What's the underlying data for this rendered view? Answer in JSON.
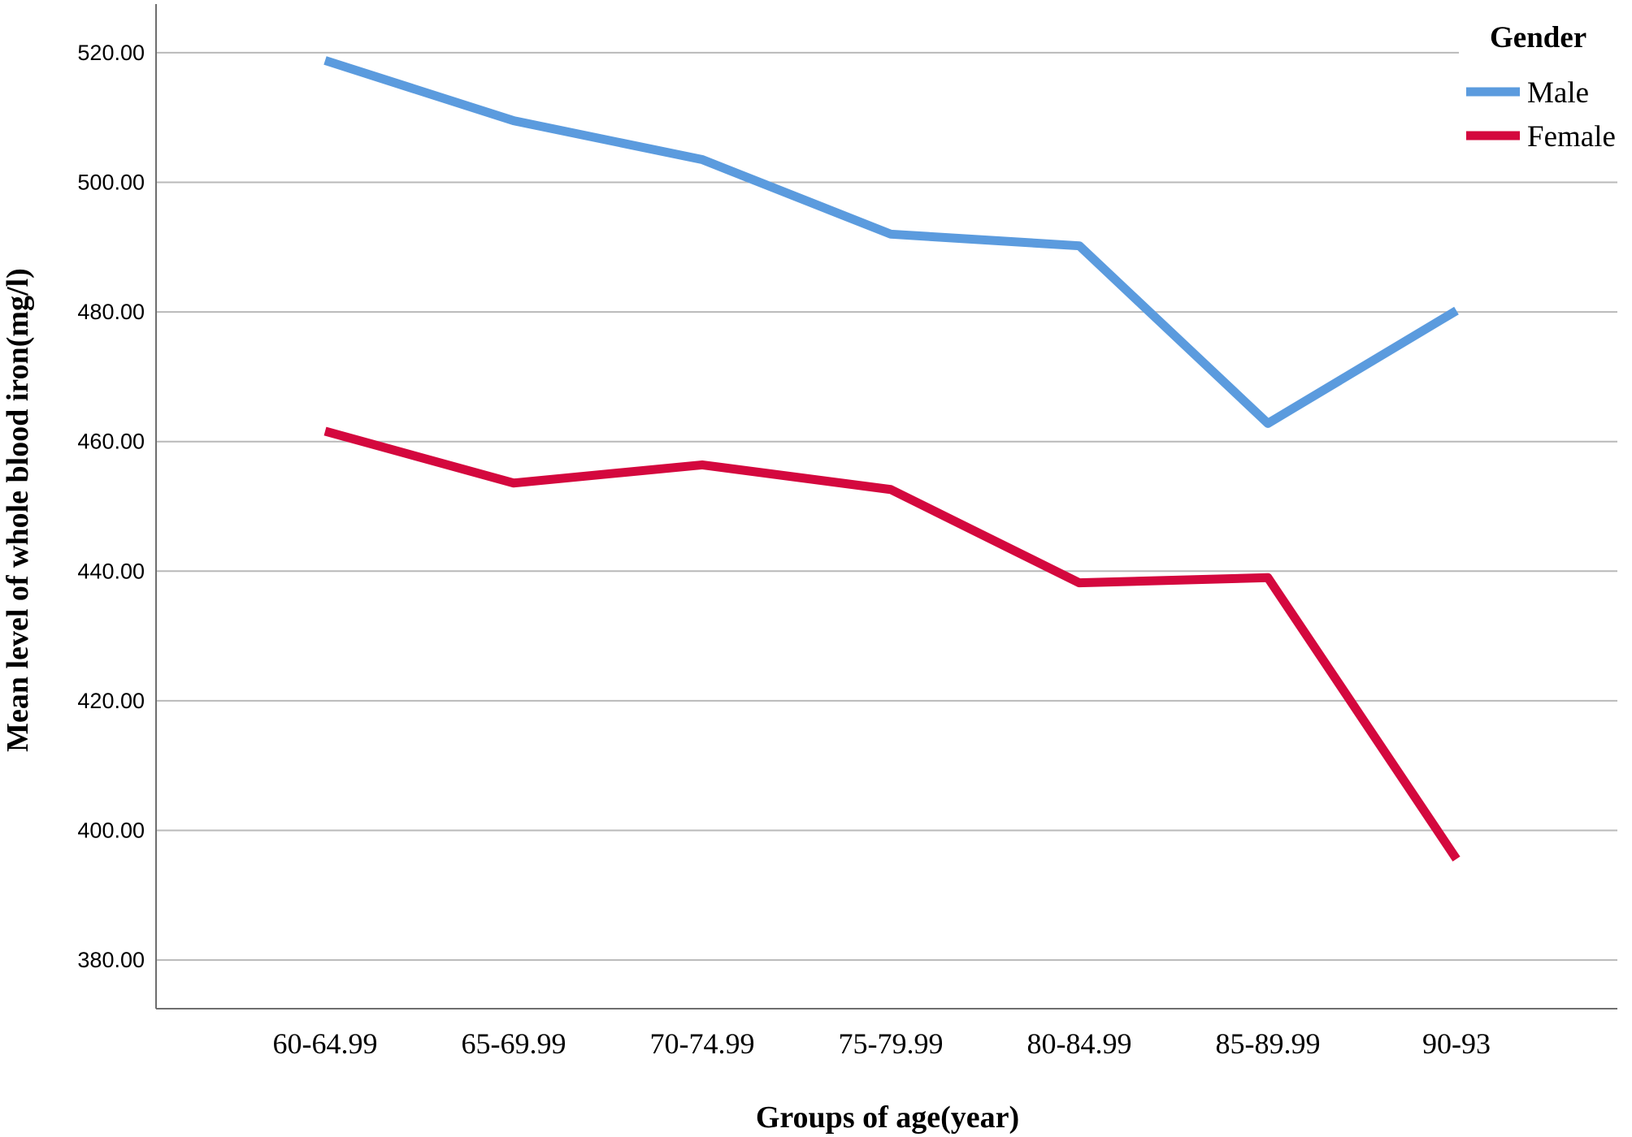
{
  "chart_data": {
    "type": "line",
    "categories": [
      "60-64.99",
      "65-69.99",
      "70-74.99",
      "75-79.99",
      "80-84.99",
      "85-89.99",
      "90-93"
    ],
    "series": [
      {
        "name": "Male",
        "color": "#5b9bde",
        "values": [
          518.8,
          509.5,
          503.5,
          492.0,
          490.2,
          462.8,
          480.2
        ]
      },
      {
        "name": "Female",
        "color": "#d4083e",
        "values": [
          461.6,
          453.6,
          456.4,
          452.6,
          438.2,
          439.0,
          395.6
        ]
      }
    ],
    "xlabel": "Groups of age(year)",
    "ylabel": "Mean level of whole blood iron(mg/l)",
    "ylim": [
      372.5,
      527.5
    ],
    "yticks": [
      "380.00",
      "400.00",
      "420.00",
      "440.00",
      "460.00",
      "480.00",
      "500.00",
      "520.00"
    ],
    "ytick_values": [
      380,
      400,
      420,
      440,
      460,
      480,
      500,
      520
    ],
    "grid": true,
    "legend": {
      "title": "Gender",
      "position": "top-right"
    }
  }
}
